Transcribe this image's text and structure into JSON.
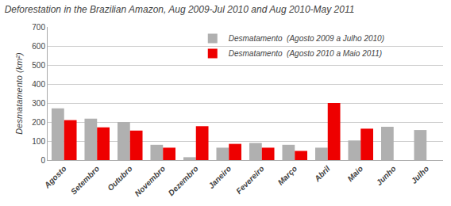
{
  "chart_data": {
    "type": "bar",
    "title": "Deforestation in the Brazilian Amazon, Aug 2009-Jul 2010 and Aug 2010-May 2011",
    "ylabel": "Desmatamento (km²)",
    "categories": [
      "Agosto",
      "Setembro",
      "Outubro",
      "Novembro",
      "Dezembro",
      "Janeiro",
      "Fevereiro",
      "Março",
      "Abril",
      "Maio",
      "Junho",
      "Julho"
    ],
    "series": [
      {
        "name": "Desmatamento  (Agosto 2009 a Julho 2010)",
        "color": "#b0b0b0",
        "values": [
          272,
          218,
          200,
          80,
          15,
          65,
          90,
          80,
          65,
          103,
          175,
          158
        ]
      },
      {
        "name": "Desmatamento  (Agosto 2010 a Maio 2011)",
        "color": "#ee0000",
        "values": [
          210,
          172,
          155,
          65,
          178,
          85,
          65,
          48,
          300,
          165,
          0,
          0
        ]
      }
    ],
    "ylim": [
      0,
      700
    ],
    "yticks": [
      0,
      100,
      200,
      300,
      400,
      500,
      600,
      700
    ],
    "grid": true,
    "legend": "top"
  }
}
